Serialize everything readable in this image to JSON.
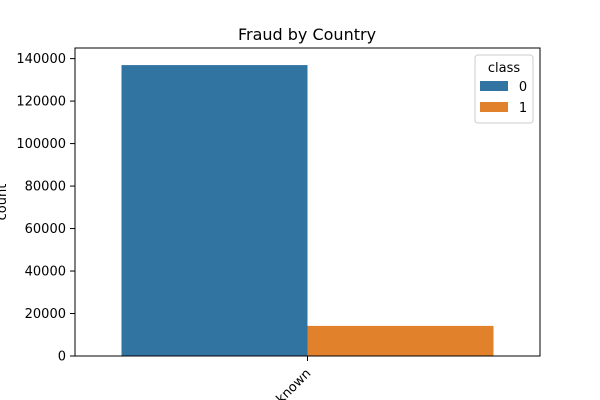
{
  "chart_data": {
    "type": "bar",
    "title": "Fraud by Country",
    "xlabel": "",
    "ylabel": "count",
    "categories": [
      "Unknown"
    ],
    "series": [
      {
        "name": "0",
        "values": [
          136961
        ],
        "color": "#3274a1"
      },
      {
        "name": "1",
        "values": [
          14171
        ],
        "color": "#e1812c"
      }
    ],
    "ylim": [
      0,
      145000
    ],
    "yticks": [
      0,
      20000,
      40000,
      60000,
      80000,
      100000,
      120000,
      140000
    ],
    "legend": {
      "title": "class",
      "placement": "top-right"
    },
    "grid": false
  }
}
